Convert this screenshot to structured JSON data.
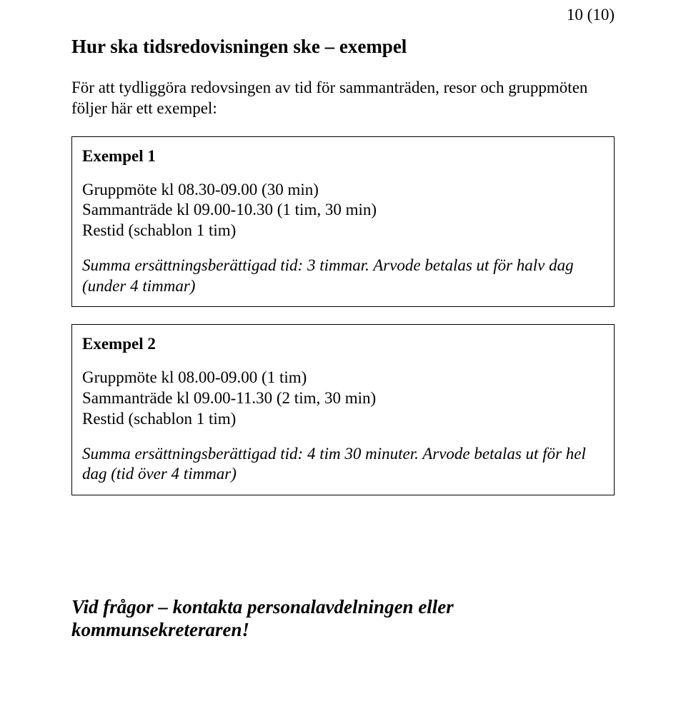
{
  "page_number": "10 (10)",
  "heading": "Hur ska tidsredovisningen ske – exempel",
  "intro": "För att tydliggöra redovsingen av tid för sammanträden, resor och gruppmöten följer här ett exempel:",
  "example1": {
    "title": "Exempel 1",
    "line1": "Gruppmöte kl 08.30-09.00 (30 min)",
    "line2": "Sammanträde kl 09.00-10.30 (1 tim, 30 min)",
    "line3": "Restid (schablon 1 tim)",
    "summary": "Summa ersättningsberättigad tid: 3 timmar. Arvode betalas ut för halv dag (under 4 timmar)"
  },
  "example2": {
    "title": "Exempel 2",
    "line1": "Gruppmöte kl 08.00-09.00 (1 tim)",
    "line2": "Sammanträde kl 09.00-11.30 (2 tim, 30 min)",
    "line3": "Restid (schablon 1 tim)",
    "summary": "Summa ersättningsberättigad tid: 4 tim 30 minuter. Arvode betalas ut för hel dag (tid över 4 timmar)"
  },
  "closing": "Vid frågor – kontakta personalavdelningen eller kommunsekreteraren!"
}
